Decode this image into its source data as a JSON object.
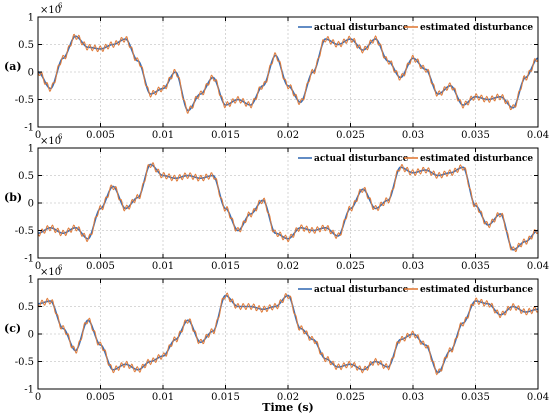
{
  "figure": {
    "xlabel": "Time (s)",
    "exponent_base": "×10",
    "exponent_power": "6"
  },
  "colors": {
    "actual": "#3b6fb6",
    "estimated": "#e07b39",
    "grid": "#cccccc"
  },
  "chart_data": [
    {
      "type": "line",
      "panel_label": "(a)",
      "xlim": [
        0,
        0.04
      ],
      "ylim": [
        -1,
        1
      ],
      "x_ticks": [
        0,
        0.005,
        0.01,
        0.015,
        0.02,
        0.025,
        0.03,
        0.035,
        0.04
      ],
      "x_tick_labels": [
        "0",
        "0.005",
        "0.01",
        "0.015",
        "0.02",
        "0.025",
        "0.03",
        "0.035",
        "0.04"
      ],
      "y_ticks": [
        -1,
        -0.5,
        0,
        0.5,
        1
      ],
      "y_tick_labels": [
        "-1",
        "-0.5",
        "0",
        "0.5",
        "1"
      ],
      "y_scale_factor": "×10^6",
      "grid": true,
      "legend_position": "top-right",
      "series": [
        {
          "name": "actual disturbance",
          "color": "#3b6fb6"
        },
        {
          "name": "estimated disturbance",
          "color": "#e07b39",
          "ripple": true
        }
      ],
      "x": [
        0,
        0.001,
        0.002,
        0.003,
        0.004,
        0.005,
        0.006,
        0.007,
        0.008,
        0.009,
        0.01,
        0.011,
        0.012,
        0.013,
        0.014,
        0.015,
        0.016,
        0.017,
        0.018,
        0.019,
        0.02,
        0.021,
        0.022,
        0.023,
        0.024,
        0.025,
        0.026,
        0.027,
        0.028,
        0.029,
        0.03,
        0.031,
        0.032,
        0.033,
        0.034,
        0.035,
        0.036,
        0.037,
        0.038,
        0.039,
        0.04
      ],
      "y": [
        0,
        -0.3,
        0.25,
        0.65,
        0.45,
        0.42,
        0.5,
        0.6,
        0.2,
        -0.4,
        -0.3,
        0.0,
        -0.7,
        -0.4,
        -0.1,
        -0.6,
        -0.5,
        -0.6,
        -0.25,
        0.3,
        -0.25,
        -0.55,
        0.0,
        0.6,
        0.5,
        0.6,
        0.4,
        0.6,
        0.2,
        -0.1,
        0.25,
        0.05,
        -0.4,
        -0.25,
        -0.6,
        -0.45,
        -0.5,
        -0.45,
        -0.65,
        -0.1,
        0.25
      ]
    },
    {
      "type": "line",
      "panel_label": "(b)",
      "xlim": [
        0,
        0.04
      ],
      "ylim": [
        -1,
        1
      ],
      "x_ticks": [
        0,
        0.005,
        0.01,
        0.015,
        0.02,
        0.025,
        0.03,
        0.035,
        0.04
      ],
      "x_tick_labels": [
        "0",
        "0.005",
        "0.01",
        "0.015",
        "0.02",
        "0.025",
        "0.03",
        "0.035",
        "0.04"
      ],
      "y_ticks": [
        -1,
        -0.5,
        0,
        0.5,
        1
      ],
      "y_tick_labels": [
        "-1",
        "-0.5",
        "0",
        "0.5",
        "1"
      ],
      "y_scale_factor": "×10^6",
      "grid": true,
      "legend_position": "top-right",
      "series": [
        {
          "name": "actual disturbance",
          "color": "#3b6fb6"
        },
        {
          "name": "estimated disturbance",
          "color": "#e07b39",
          "ripple": true
        }
      ],
      "x": [
        0,
        0.001,
        0.002,
        0.003,
        0.004,
        0.005,
        0.006,
        0.007,
        0.008,
        0.009,
        0.01,
        0.011,
        0.012,
        0.013,
        0.014,
        0.015,
        0.016,
        0.017,
        0.018,
        0.019,
        0.02,
        0.021,
        0.022,
        0.023,
        0.024,
        0.025,
        0.026,
        0.027,
        0.028,
        0.029,
        0.03,
        0.031,
        0.032,
        0.033,
        0.034,
        0.035,
        0.036,
        0.037,
        0.038,
        0.039,
        0.04
      ],
      "y": [
        -0.55,
        -0.45,
        -0.55,
        -0.45,
        -0.65,
        -0.1,
        0.3,
        -0.1,
        0.1,
        0.7,
        0.5,
        0.45,
        0.5,
        0.45,
        0.5,
        -0.1,
        -0.5,
        -0.2,
        0.05,
        -0.55,
        -0.65,
        -0.45,
        -0.5,
        -0.45,
        -0.6,
        -0.1,
        0.25,
        -0.1,
        0.05,
        0.65,
        0.55,
        0.6,
        0.5,
        0.55,
        0.65,
        -0.05,
        -0.4,
        -0.2,
        -0.85,
        -0.7,
        -0.5
      ]
    },
    {
      "type": "line",
      "panel_label": "(c)",
      "xlim": [
        0,
        0.04
      ],
      "ylim": [
        -1,
        1
      ],
      "x_ticks": [
        0,
        0.005,
        0.01,
        0.015,
        0.02,
        0.025,
        0.03,
        0.035,
        0.04
      ],
      "x_tick_labels": [
        "0",
        "0.005",
        "0.01",
        "0.015",
        "0.02",
        "0.025",
        "0.03",
        "0.035",
        "0.04"
      ],
      "y_ticks": [
        -1,
        -0.5,
        0,
        0.5,
        1
      ],
      "y_tick_labels": [
        "-1",
        "-0.5",
        "0",
        "0.5",
        "1"
      ],
      "y_scale_factor": "×10^6",
      "grid": true,
      "legend_position": "top-right",
      "series": [
        {
          "name": "actual disturbance",
          "color": "#3b6fb6"
        },
        {
          "name": "estimated disturbance",
          "color": "#e07b39",
          "ripple": true
        }
      ],
      "x": [
        0,
        0.001,
        0.002,
        0.003,
        0.004,
        0.005,
        0.006,
        0.007,
        0.008,
        0.009,
        0.01,
        0.011,
        0.012,
        0.013,
        0.014,
        0.015,
        0.016,
        0.017,
        0.018,
        0.019,
        0.02,
        0.021,
        0.022,
        0.023,
        0.024,
        0.025,
        0.026,
        0.027,
        0.028,
        0.029,
        0.03,
        0.031,
        0.032,
        0.033,
        0.034,
        0.035,
        0.036,
        0.037,
        0.038,
        0.039,
        0.04
      ],
      "y": [
        0.55,
        0.6,
        0.1,
        -0.3,
        0.25,
        -0.2,
        -0.65,
        -0.55,
        -0.65,
        -0.5,
        -0.4,
        -0.1,
        0.25,
        -0.15,
        0.05,
        0.7,
        0.5,
        0.5,
        0.45,
        0.5,
        0.7,
        0.1,
        -0.1,
        -0.45,
        -0.6,
        -0.55,
        -0.65,
        -0.5,
        -0.6,
        -0.1,
        0.0,
        -0.2,
        -0.7,
        -0.3,
        0.2,
        0.6,
        0.55,
        0.35,
        0.5,
        0.4,
        0.45
      ]
    }
  ]
}
